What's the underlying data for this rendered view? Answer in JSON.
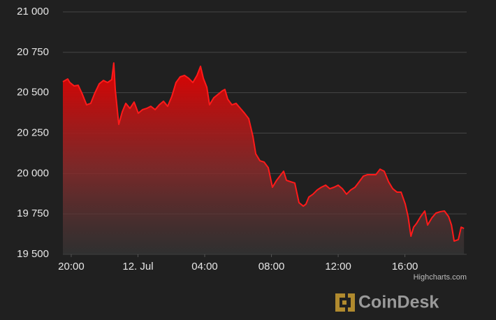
{
  "chart_data": {
    "type": "area",
    "x": [
      -4.5,
      -4.21,
      -4.08,
      -3.83,
      -3.58,
      -3.33,
      -3.08,
      -2.83,
      -2.58,
      -2.32,
      -2.07,
      -1.82,
      -1.57,
      -1.45,
      -1.36,
      -1.15,
      -0.94,
      -0.73,
      -0.48,
      -0.23,
      0.02,
      0.27,
      0.52,
      0.77,
      1.03,
      1.28,
      1.53,
      1.78,
      2.03,
      2.28,
      2.53,
      2.79,
      3.04,
      3.29,
      3.54,
      3.75,
      3.92,
      4.13,
      4.29,
      4.54,
      4.8,
      5.05,
      5.21,
      5.38,
      5.63,
      5.88,
      6.14,
      6.39,
      6.64,
      6.89,
      7.06,
      7.31,
      7.56,
      7.81,
      8.06,
      8.31,
      8.57,
      8.73,
      8.9,
      9.15,
      9.4,
      9.65,
      9.91,
      10.07,
      10.24,
      10.49,
      10.74,
      10.99,
      11.25,
      11.5,
      11.75,
      12.0,
      12.25,
      12.5,
      12.75,
      13.01,
      13.26,
      13.51,
      13.76,
      14.01,
      14.26,
      14.51,
      14.76,
      15.02,
      15.27,
      15.52,
      15.77,
      16.02,
      16.19,
      16.36,
      16.52,
      16.69,
      16.94,
      17.19,
      17.36,
      17.61,
      17.86,
      18.12,
      18.37,
      18.62,
      18.79,
      18.95,
      19.2,
      19.37,
      19.54
    ],
    "series": [
      {
        "color": "#ff1a1a",
        "values": [
          20568,
          20585,
          20563,
          20542,
          20546,
          20490,
          20425,
          20434,
          20499,
          20555,
          20576,
          20563,
          20581,
          20684,
          20520,
          20304,
          20382,
          20434,
          20403,
          20442,
          20373,
          20395,
          20403,
          20416,
          20395,
          20425,
          20447,
          20416,
          20477,
          20563,
          20598,
          20607,
          20589,
          20563,
          20607,
          20663,
          20589,
          20533,
          20425,
          20468,
          20490,
          20511,
          20520,
          20460,
          20425,
          20434,
          20403,
          20373,
          20339,
          20230,
          20122,
          20079,
          20071,
          20036,
          19915,
          19958,
          19993,
          20014,
          19958,
          19949,
          19941,
          19820,
          19798,
          19811,
          19854,
          19872,
          19898,
          19915,
          19928,
          19906,
          19915,
          19928,
          19906,
          19872,
          19898,
          19915,
          19949,
          19984,
          19993,
          19993,
          19993,
          20027,
          20014,
          19949,
          19906,
          19885,
          19885,
          19811,
          19733,
          19612,
          19668,
          19690,
          19733,
          19768,
          19681,
          19725,
          19755,
          19764,
          19768,
          19733,
          19681,
          19582,
          19591,
          19668,
          19660
        ]
      }
    ],
    "xlim": [
      -4.5,
      19.7
    ],
    "xticks": [
      {
        "value": -4,
        "label": "20:00"
      },
      {
        "value": 0,
        "label": "12. Jul"
      },
      {
        "value": 4,
        "label": "04:00"
      },
      {
        "value": 8,
        "label": "08:00"
      },
      {
        "value": 12,
        "label": "12:00"
      },
      {
        "value": 16,
        "label": "16:00"
      }
    ],
    "ylim": [
      19500,
      21000
    ],
    "yticks": [
      {
        "value": 19500,
        "label": "19 500"
      },
      {
        "value": 19750,
        "label": "19 750"
      },
      {
        "value": 20000,
        "label": "20 000"
      },
      {
        "value": 20250,
        "label": "20 250"
      },
      {
        "value": 20500,
        "label": "20 500"
      },
      {
        "value": 20750,
        "label": "20 750"
      },
      {
        "value": 21000,
        "label": "21 000"
      }
    ],
    "grid": true,
    "credits": "Highcharts.com",
    "watermark": "CoinDesk"
  }
}
